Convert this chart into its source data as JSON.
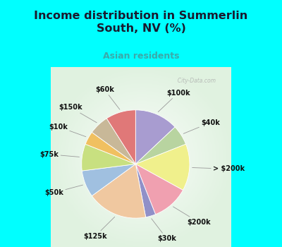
{
  "title": "Income distribution in Summerlin\nSouth, NV (%)",
  "subtitle": "Asian residents",
  "title_color": "#1a1a2e",
  "subtitle_color": "#3aaaaa",
  "background_top": "#00ffff",
  "background_chart_color": "#e0f0e8",
  "labels": [
    "$100k",
    "$40k",
    "> $200k",
    "$200k",
    "$30k",
    "$125k",
    "$50k",
    "$75k",
    "$10k",
    "$150k",
    "$60k"
  ],
  "values": [
    13,
    6,
    14,
    11,
    3,
    18,
    8,
    8,
    4,
    6,
    9
  ],
  "colors": [
    "#a89cd0",
    "#b8d4a0",
    "#f0f08c",
    "#f0a0b0",
    "#9090c8",
    "#f0c8a0",
    "#a0c0e0",
    "#c8e080",
    "#f0c060",
    "#c8b898",
    "#e07878"
  ],
  "watermark": "City-Data.com",
  "title_fontsize": 11.5,
  "subtitle_fontsize": 9,
  "label_fontsize": 7
}
